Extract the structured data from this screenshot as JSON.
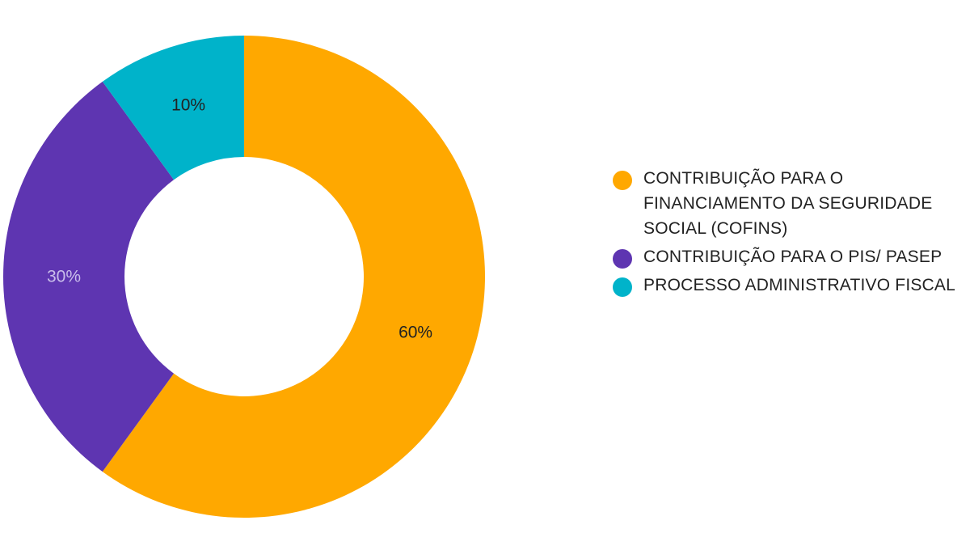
{
  "chart_data": {
    "type": "pie",
    "donut": true,
    "title": "",
    "legend_position": "right",
    "categories": [
      "CONTRIBUIÇÃO PARA O FINANCIAMENTO DA SEGURIDADE SOCIAL (COFINS)",
      "CONTRIBUIÇÃO PARA O PIS/ PASEP",
      "PROCESSO ADMINISTRATIVO FISCAL"
    ],
    "values": [
      60,
      30,
      10
    ],
    "value_labels": [
      "60%",
      "30%",
      "10%"
    ],
    "colors": [
      "#FFA800",
      "#5E35B1",
      "#00B3CA"
    ],
    "label_colors": [
      "#222222",
      "#C9BDEA",
      "#222222"
    ]
  }
}
